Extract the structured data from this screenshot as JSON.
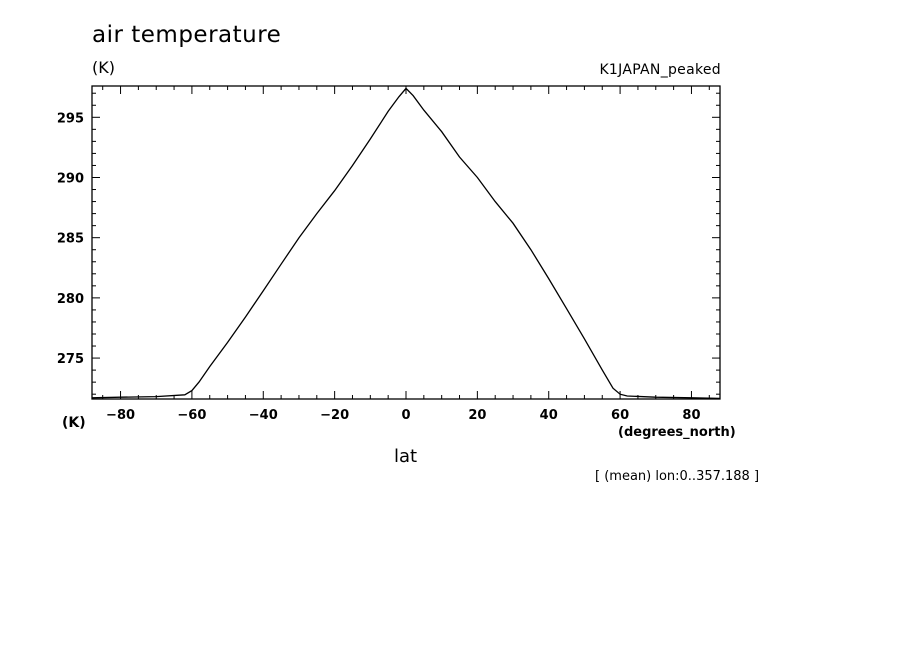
{
  "chart_data": {
    "type": "line",
    "title": "air temperature",
    "units_label": "(K)",
    "subtitle": "K1JAPAN_peaked",
    "xlabel": "lat",
    "xunits": "(degrees_north)",
    "note": "[ (mean) lon:0..357.188 ]",
    "xlim": [
      -88,
      88
    ],
    "ylim": [
      271.6,
      297.6
    ],
    "xticks": [
      -80,
      -60,
      -40,
      -20,
      0,
      20,
      40,
      60,
      80
    ],
    "xtick_labels": [
      "−80",
      "−60",
      "−40",
      "−20",
      "0",
      "20",
      "40",
      "60",
      "80"
    ],
    "yticks": [
      275,
      280,
      285,
      290,
      295
    ],
    "ytick_labels": [
      "275",
      "280",
      "285",
      "290",
      "295"
    ],
    "grid": false,
    "series": [
      {
        "x": [
          -88,
          -80,
          -70,
          -62,
          -60,
          -58,
          -55,
          -50,
          -45,
          -40,
          -35,
          -30,
          -25,
          -20,
          -15,
          -10,
          -5,
          -2,
          0,
          2,
          5,
          10,
          15,
          20,
          25,
          30,
          35,
          40,
          45,
          50,
          55,
          58,
          60,
          62,
          70,
          80,
          88
        ],
        "y": [
          271.7,
          271.75,
          271.8,
          271.95,
          272.3,
          273.0,
          274.3,
          276.3,
          278.4,
          280.6,
          282.8,
          285.0,
          287.0,
          288.9,
          291.0,
          293.2,
          295.5,
          296.7,
          297.4,
          296.8,
          295.6,
          293.8,
          291.7,
          290.0,
          288.0,
          286.2,
          284.0,
          281.6,
          279.1,
          276.6,
          274.0,
          272.5,
          272.0,
          271.85,
          271.75,
          271.7,
          271.65
        ]
      }
    ]
  }
}
